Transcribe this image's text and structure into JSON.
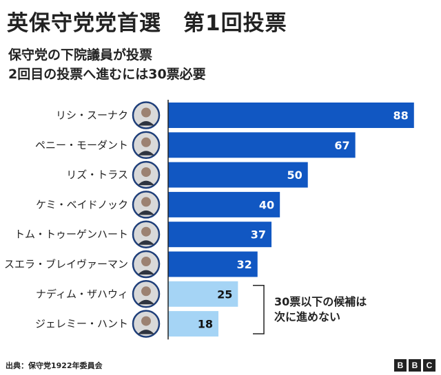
{
  "header": {
    "title": "英保守党党首選　第1回投票",
    "subtitle_line1": "保守党の下院議員が投票",
    "subtitle_line2": "2回目の投票へ進むには30票必要"
  },
  "colors": {
    "advance": "#1157c2",
    "eliminated": "#a5d4f5",
    "axis": "#222222"
  },
  "chart_data": {
    "type": "bar",
    "orientation": "horizontal",
    "title": "英保守党党首選　第1回投票",
    "categories": [
      "リシ・スーナク",
      "ペニー・モーダント",
      "リズ・トラス",
      "ケミ・ベイドノック",
      "トム・トゥーゲンハート",
      "スエラ・ブレイヴァーマン",
      "ナディム・ザハウィ",
      "ジェレミー・ハント"
    ],
    "values": [
      88,
      67,
      50,
      40,
      37,
      32,
      25,
      18
    ],
    "threshold": 30,
    "xlim": [
      0,
      92
    ],
    "annotation": {
      "line1": "30票以下の候補は",
      "line2": "次に進めない"
    }
  },
  "footer": {
    "source": "出典：保守党1922年委員会",
    "logo_letters": [
      "B",
      "B",
      "C"
    ]
  }
}
